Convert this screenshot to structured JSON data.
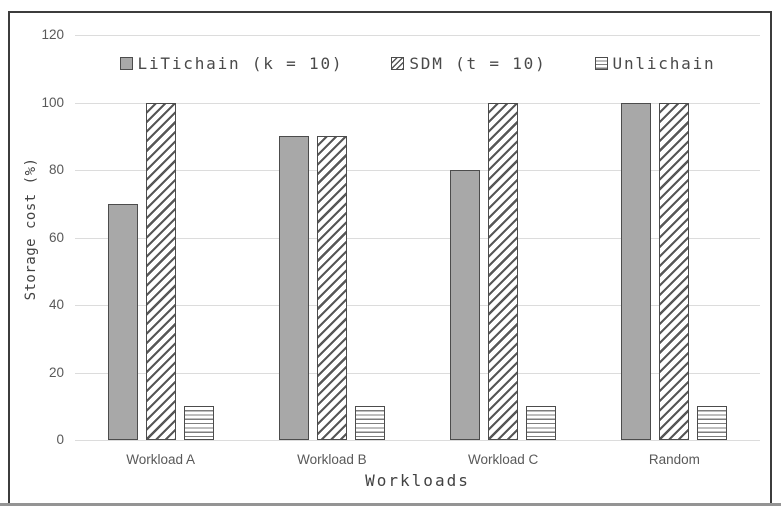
{
  "chart_data": {
    "type": "bar",
    "title": "",
    "categories": [
      "Workload A",
      "Workload B",
      "Workload C",
      "Random"
    ],
    "series": [
      {
        "name": "LiTichain (k = 10)",
        "pattern": "solid-gray",
        "values": [
          70,
          90,
          80,
          100
        ]
      },
      {
        "name": "SDM (t = 10)",
        "pattern": "diagonal-hatch",
        "values": [
          100,
          90,
          100,
          100
        ]
      },
      {
        "name": "Unlichain",
        "pattern": "horizontal-lines",
        "values": [
          10,
          10,
          10,
          10
        ]
      }
    ],
    "xlabel": "Workloads",
    "ylabel": "Storage cost (%)",
    "ylim": [
      0,
      120
    ],
    "yticks": [
      0,
      20,
      40,
      60,
      80,
      100,
      120
    ],
    "grid": true,
    "legend_position": "top-center"
  },
  "colors": {
    "bar_fill": "#a8a8a8",
    "bar_border": "#4c4c4c",
    "hatch_line": "#575757",
    "horizontal_line": "#7d7d7d",
    "gridline": "#dcdcdc",
    "tick_text": "#595959",
    "title_text": "#424242",
    "frame_border": "#3c3c3c"
  }
}
